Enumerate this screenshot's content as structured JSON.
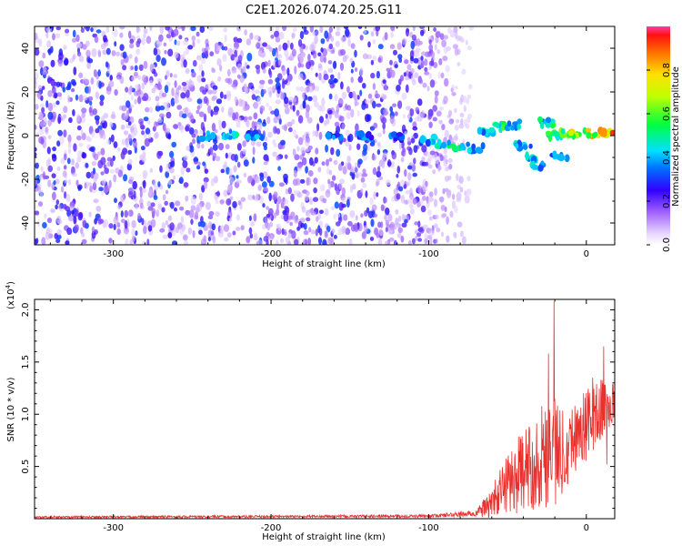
{
  "title": "C2E1.2026.074.20.25.G11",
  "chart_data": [
    {
      "type": "heatmap",
      "xlabel": "Height of straight line (km)",
      "ylabel": "Frequency (Hz)",
      "xlim": [
        -350,
        18
      ],
      "ylim": [
        -50,
        50
      ],
      "xticks": [
        -300,
        -200,
        -100,
        0
      ],
      "xtick_labels": [
        "-300",
        "-200",
        "-100",
        "0"
      ],
      "yticks": [
        -40,
        -20,
        0,
        20,
        40
      ],
      "ytick_labels": [
        "-40",
        "-20",
        "0",
        "20",
        "40"
      ],
      "colorbar": {
        "label": "Normalized spectral amplitude",
        "range": [
          0,
          1
        ],
        "ticks": [
          0.0,
          0.2,
          0.4,
          0.6,
          0.8
        ],
        "tick_labels": [
          "0.0",
          "0.2",
          "0.4",
          "0.6",
          "0.8"
        ]
      },
      "noise_extent_km": [
        -350,
        -72
      ],
      "signal_track": [
        {
          "x": -240,
          "f": 0.0,
          "amp": 0.45
        },
        {
          "x": -225,
          "f": 0.0,
          "amp": 0.55
        },
        {
          "x": -210,
          "f": 0.0,
          "amp": 0.45
        },
        {
          "x": -160,
          "f": 0.0,
          "amp": 0.4
        },
        {
          "x": -140,
          "f": 0.0,
          "amp": 0.4
        },
        {
          "x": -120,
          "f": -1.0,
          "amp": 0.4
        },
        {
          "x": -100,
          "f": -2.0,
          "amp": 0.5
        },
        {
          "x": -90,
          "f": -4.0,
          "amp": 0.55
        },
        {
          "x": -80,
          "f": -5.0,
          "amp": 0.55
        },
        {
          "x": -70,
          "f": -6.0,
          "amp": 0.5
        },
        {
          "x": -64,
          "f": 2.0,
          "amp": 0.5
        },
        {
          "x": -55,
          "f": 4.0,
          "amp": 0.6
        },
        {
          "x": -45,
          "f": 5.0,
          "amp": 0.55
        },
        {
          "x": -40,
          "f": -5.0,
          "amp": 0.5
        },
        {
          "x": -35,
          "f": -10.0,
          "amp": 0.55
        },
        {
          "x": -30,
          "f": -14.0,
          "amp": 0.5
        },
        {
          "x": -25,
          "f": 6.0,
          "amp": 0.6
        },
        {
          "x": -20,
          "f": 0.0,
          "amp": 0.6
        },
        {
          "x": -17,
          "f": -10.0,
          "amp": 0.45
        },
        {
          "x": -12,
          "f": 1.0,
          "amp": 0.75
        },
        {
          "x": -5,
          "f": 1.0,
          "amp": 0.85
        },
        {
          "x": 5,
          "f": 1.0,
          "amp": 0.9
        },
        {
          "x": 15,
          "f": 1.0,
          "amp": 1.0
        }
      ]
    },
    {
      "type": "line",
      "xlabel": "Height of straight line (km)",
      "ylabel": "SNR (10 * v/v)",
      "y_multiplier_label": "(x10",
      "y_multiplier_exp": "4",
      "y_multiplier_close": ")",
      "xlim": [
        -350,
        18
      ],
      "ylim": [
        0,
        2.1
      ],
      "xticks": [
        -300,
        -200,
        -100,
        0
      ],
      "xtick_labels": [
        "-300",
        "-200",
        "-100",
        "0"
      ],
      "yticks": [
        0.5,
        1.0,
        1.5,
        2.0
      ],
      "ytick_labels": [
        "0.5",
        "1.0",
        "1.5",
        "2.0"
      ],
      "series_color": "#e8302c",
      "envelope": [
        {
          "x": -350,
          "base": 0.015,
          "amp": 0.01
        },
        {
          "x": -200,
          "base": 0.02,
          "amp": 0.012
        },
        {
          "x": -100,
          "base": 0.025,
          "amp": 0.015
        },
        {
          "x": -70,
          "base": 0.05,
          "amp": 0.03
        },
        {
          "x": -60,
          "base": 0.15,
          "amp": 0.15
        },
        {
          "x": -50,
          "base": 0.35,
          "amp": 0.3
        },
        {
          "x": -40,
          "base": 0.45,
          "amp": 0.4
        },
        {
          "x": -30,
          "base": 0.55,
          "amp": 0.45
        },
        {
          "x": -22,
          "base": 0.8,
          "amp": 0.7
        },
        {
          "x": -18,
          "base": 0.6,
          "amp": 0.5
        },
        {
          "x": -10,
          "base": 0.75,
          "amp": 0.35
        },
        {
          "x": 0,
          "base": 0.9,
          "amp": 0.35
        },
        {
          "x": 10,
          "base": 1.05,
          "amp": 0.3
        },
        {
          "x": 18,
          "base": 1.1,
          "amp": 0.2
        }
      ],
      "peaks": [
        {
          "x": -20.5,
          "y": 2.08
        },
        {
          "x": -24,
          "y": 1.58
        },
        {
          "x": 11,
          "y": 1.65
        },
        {
          "x": 13,
          "y": 0.52
        },
        {
          "x": 4,
          "y": 1.35
        }
      ]
    }
  ]
}
